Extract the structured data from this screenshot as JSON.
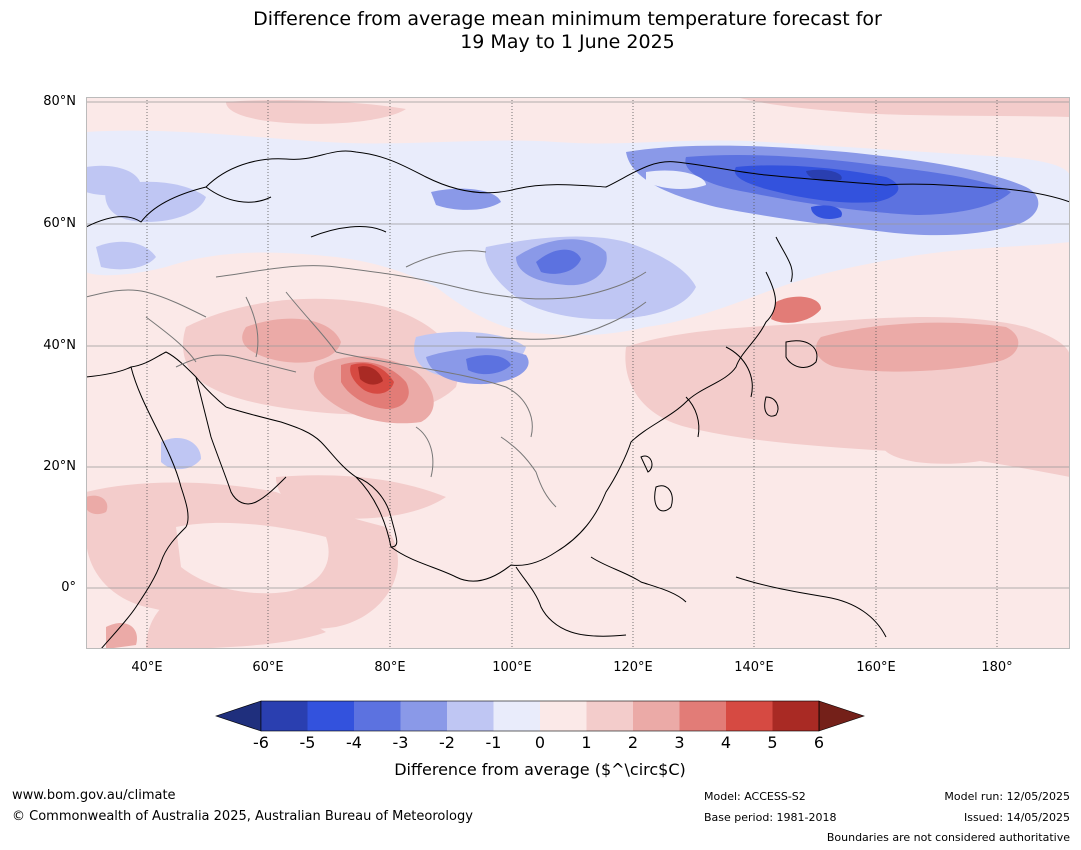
{
  "title": {
    "line1": "Difference from average mean minimum temperature forecast for",
    "line2": "19 May to 1 June 2025"
  },
  "map": {
    "lat_labels": [
      "80°N",
      "60°N",
      "40°N",
      "20°N",
      "0°"
    ],
    "lon_labels": [
      "40°E",
      "60°E",
      "80°E",
      "100°E",
      "120°E",
      "140°E",
      "160°E",
      "180°"
    ],
    "lat_range": [
      -10,
      80
    ],
    "lon_range": [
      30,
      192
    ]
  },
  "legend": {
    "ticks": [
      "-6",
      "-5",
      "-4",
      "-3",
      "-2",
      "-1",
      "0",
      "1",
      "2",
      "3",
      "4",
      "5",
      "6"
    ],
    "colors": [
      "#1f2f7d",
      "#2a3fb0",
      "#3352dd",
      "#5c72e0",
      "#8a99e8",
      "#bfc6f3",
      "#e9ecfb",
      "#fbe9e8",
      "#f3cccb",
      "#ebaaa7",
      "#e27c77",
      "#d64a42",
      "#a92a24",
      "#742019"
    ],
    "label": "Difference from average ($^\\circ$C)"
  },
  "footer": {
    "url": "www.bom.gov.au/climate",
    "copyright": "© Commonwealth of Australia 2025, Australian Bureau of Meteorology",
    "model": "Model: ACCESS-S2",
    "base_period": "Base period: 1981-2018",
    "model_run": "Model run: 12/05/2025",
    "issued": "Issued: 14/05/2025",
    "disclaimer": "Boundaries are not considered authoritative"
  }
}
